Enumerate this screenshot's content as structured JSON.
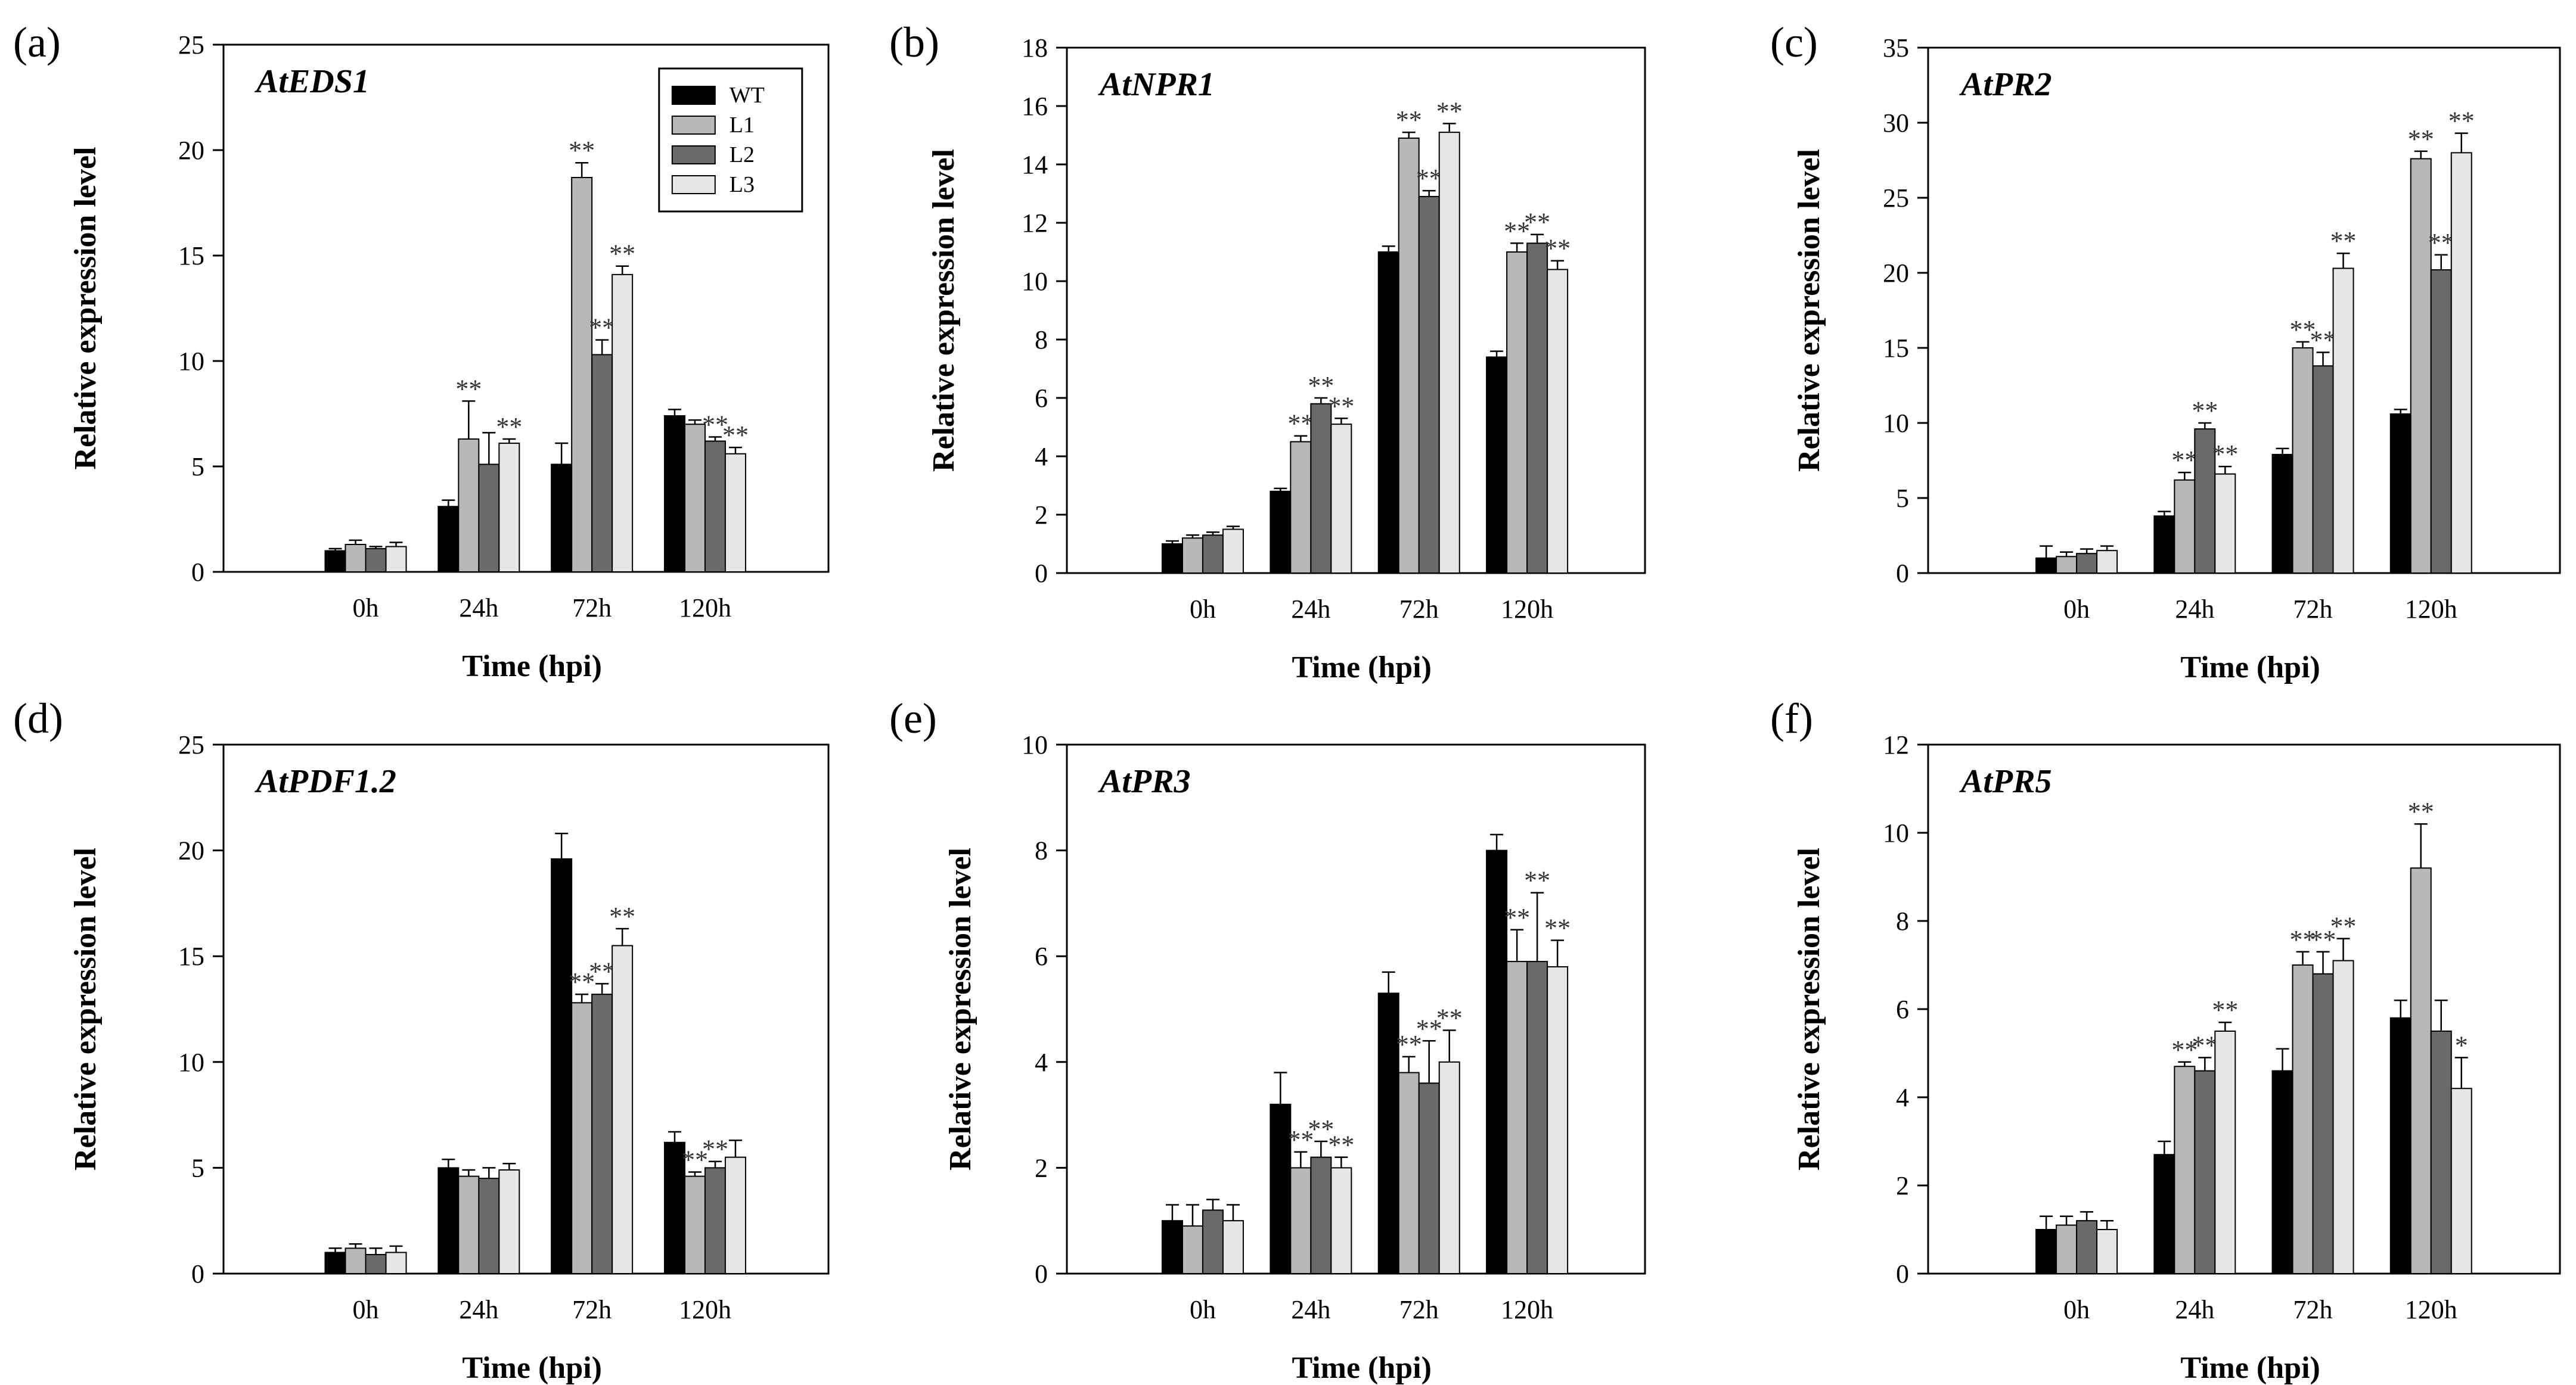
{
  "colors": {
    "WT": "#000000",
    "L1": "#b8b8b8",
    "L2": "#6a6a6a",
    "L3": "#e6e6e6",
    "axis": "#000000"
  },
  "legend": {
    "entries": [
      "WT",
      "L1",
      "L2",
      "L3"
    ]
  },
  "chart_data": [
    {
      "panel": "(a)",
      "type": "bar",
      "title": "AtEDS1",
      "xlabel": "Time (hpi)",
      "ylabel": "Relative expression level",
      "categories": [
        "0h",
        "24h",
        "72h",
        "120h"
      ],
      "ylim": [
        0,
        25
      ],
      "yticks": [
        0,
        5,
        10,
        15,
        20,
        25
      ],
      "series": [
        {
          "name": "WT",
          "values": [
            1.0,
            3.1,
            5.1,
            7.4
          ],
          "errors": [
            0.1,
            0.3,
            1.0,
            0.3
          ],
          "stars": [
            "",
            "",
            "",
            ""
          ]
        },
        {
          "name": "L1",
          "values": [
            1.3,
            6.3,
            18.7,
            7.0
          ],
          "errors": [
            0.2,
            1.8,
            0.7,
            0.2
          ],
          "stars": [
            "",
            "**",
            "**",
            ""
          ]
        },
        {
          "name": "L2",
          "values": [
            1.1,
            5.1,
            10.3,
            6.2
          ],
          "errors": [
            0.1,
            1.5,
            0.7,
            0.2
          ],
          "stars": [
            "",
            "",
            "**",
            "**"
          ]
        },
        {
          "name": "L3",
          "values": [
            1.2,
            6.1,
            14.1,
            5.6
          ],
          "errors": [
            0.2,
            0.2,
            0.4,
            0.3
          ],
          "stars": [
            "",
            "**",
            "**",
            "**"
          ]
        }
      ],
      "show_legend": true,
      "legend_position": "top-right"
    },
    {
      "panel": "(b)",
      "type": "bar",
      "title": "AtNPR1",
      "xlabel": "Time (hpi)",
      "ylabel": "Relative expression level",
      "categories": [
        "0h",
        "24h",
        "72h",
        "120h"
      ],
      "ylim": [
        0,
        18
      ],
      "yticks": [
        0,
        2,
        4,
        6,
        8,
        10,
        12,
        14,
        16,
        18
      ],
      "series": [
        {
          "name": "WT",
          "values": [
            1.0,
            2.8,
            11.0,
            7.4
          ],
          "errors": [
            0.1,
            0.1,
            0.2,
            0.2
          ],
          "stars": [
            "",
            "",
            "",
            ""
          ]
        },
        {
          "name": "L1",
          "values": [
            1.2,
            4.5,
            14.9,
            11.0
          ],
          "errors": [
            0.1,
            0.2,
            0.2,
            0.3
          ],
          "stars": [
            "",
            "**",
            "**",
            "**"
          ]
        },
        {
          "name": "L2",
          "values": [
            1.3,
            5.8,
            12.9,
            11.3
          ],
          "errors": [
            0.1,
            0.2,
            0.2,
            0.3
          ],
          "stars": [
            "",
            "**",
            "**",
            "**"
          ]
        },
        {
          "name": "L3",
          "values": [
            1.5,
            5.1,
            15.1,
            10.4
          ],
          "errors": [
            0.1,
            0.2,
            0.3,
            0.3
          ],
          "stars": [
            "",
            "**",
            "**",
            "**"
          ]
        }
      ],
      "show_legend": false
    },
    {
      "panel": "(c)",
      "type": "bar",
      "title": "AtPR2",
      "xlabel": "Time (hpi)",
      "ylabel": "Relative expression level",
      "categories": [
        "0h",
        "24h",
        "72h",
        "120h"
      ],
      "ylim": [
        0,
        35
      ],
      "yticks": [
        0,
        5,
        10,
        15,
        20,
        25,
        30,
        35
      ],
      "series": [
        {
          "name": "WT",
          "values": [
            1.0,
            3.8,
            7.9,
            10.6
          ],
          "errors": [
            0.8,
            0.3,
            0.4,
            0.3
          ],
          "stars": [
            "",
            "",
            "",
            ""
          ]
        },
        {
          "name": "L1",
          "values": [
            1.1,
            6.2,
            15.0,
            27.6
          ],
          "errors": [
            0.3,
            0.5,
            0.4,
            0.5
          ],
          "stars": [
            "",
            "**",
            "**",
            "**"
          ]
        },
        {
          "name": "L2",
          "values": [
            1.3,
            9.6,
            13.8,
            20.2
          ],
          "errors": [
            0.3,
            0.4,
            0.9,
            1.0
          ],
          "stars": [
            "",
            "**",
            "**",
            "**"
          ]
        },
        {
          "name": "L3",
          "values": [
            1.5,
            6.6,
            20.3,
            28.0
          ],
          "errors": [
            0.3,
            0.5,
            1.0,
            1.3
          ],
          "stars": [
            "",
            "**",
            "**",
            "**"
          ]
        }
      ],
      "show_legend": false
    },
    {
      "panel": "(d)",
      "type": "bar",
      "title": "AtPDF1.2",
      "xlabel": "Time (hpi)",
      "ylabel": "Relative expression level",
      "categories": [
        "0h",
        "24h",
        "72h",
        "120h"
      ],
      "ylim": [
        0,
        25
      ],
      "yticks": [
        0,
        5,
        10,
        15,
        20,
        25
      ],
      "series": [
        {
          "name": "WT",
          "values": [
            1.0,
            5.0,
            19.6,
            6.2
          ],
          "errors": [
            0.2,
            0.4,
            1.2,
            0.5
          ],
          "stars": [
            "",
            "",
            "",
            ""
          ]
        },
        {
          "name": "L1",
          "values": [
            1.2,
            4.6,
            12.8,
            4.6
          ],
          "errors": [
            0.2,
            0.3,
            0.4,
            0.2
          ],
          "stars": [
            "",
            "",
            "**",
            "**"
          ]
        },
        {
          "name": "L2",
          "values": [
            0.9,
            4.5,
            13.2,
            5.0
          ],
          "errors": [
            0.3,
            0.5,
            0.5,
            0.3
          ],
          "stars": [
            "",
            "",
            "**",
            "**"
          ]
        },
        {
          "name": "L3",
          "values": [
            1.0,
            4.9,
            15.5,
            5.5
          ],
          "errors": [
            0.3,
            0.3,
            0.8,
            0.8
          ],
          "stars": [
            "",
            "",
            "**",
            ""
          ]
        }
      ],
      "show_legend": false
    },
    {
      "panel": "(e)",
      "type": "bar",
      "title": "AtPR3",
      "xlabel": "Time (hpi)",
      "ylabel": "Relative expression level",
      "categories": [
        "0h",
        "24h",
        "72h",
        "120h"
      ],
      "ylim": [
        0,
        10
      ],
      "yticks": [
        0,
        2,
        4,
        6,
        8,
        10
      ],
      "series": [
        {
          "name": "WT",
          "values": [
            1.0,
            3.2,
            5.3,
            8.0
          ],
          "errors": [
            0.3,
            0.6,
            0.4,
            0.3
          ],
          "stars": [
            "",
            "",
            "",
            ""
          ]
        },
        {
          "name": "L1",
          "values": [
            0.9,
            2.0,
            3.8,
            5.9
          ],
          "errors": [
            0.4,
            0.3,
            0.3,
            0.6
          ],
          "stars": [
            "",
            "**",
            "**",
            "**"
          ]
        },
        {
          "name": "L2",
          "values": [
            1.2,
            2.2,
            3.6,
            5.9
          ],
          "errors": [
            0.2,
            0.3,
            0.8,
            1.3
          ],
          "stars": [
            "",
            "**",
            "**",
            "**"
          ]
        },
        {
          "name": "L3",
          "values": [
            1.0,
            2.0,
            4.0,
            5.8
          ],
          "errors": [
            0.3,
            0.2,
            0.6,
            0.5
          ],
          "stars": [
            "",
            "**",
            "**",
            "**"
          ]
        }
      ],
      "show_legend": false
    },
    {
      "panel": "(f)",
      "type": "bar",
      "title": "AtPR5",
      "xlabel": "Time (hpi)",
      "ylabel": "Relative expression level",
      "categories": [
        "0h",
        "24h",
        "72h",
        "120h"
      ],
      "ylim": [
        0,
        12
      ],
      "yticks": [
        0,
        2,
        4,
        6,
        8,
        10,
        12
      ],
      "series": [
        {
          "name": "WT",
          "values": [
            1.0,
            2.7,
            4.6,
            5.8
          ],
          "errors": [
            0.3,
            0.3,
            0.5,
            0.4
          ],
          "stars": [
            "",
            "",
            "",
            ""
          ]
        },
        {
          "name": "L1",
          "values": [
            1.1,
            4.7,
            7.0,
            9.2
          ],
          "errors": [
            0.2,
            0.1,
            0.3,
            1.0
          ],
          "stars": [
            "",
            "**",
            "**",
            "**"
          ]
        },
        {
          "name": "L2",
          "values": [
            1.2,
            4.6,
            6.8,
            5.5
          ],
          "errors": [
            0.2,
            0.3,
            0.5,
            0.7
          ],
          "stars": [
            "",
            "**",
            "**",
            ""
          ]
        },
        {
          "name": "L3",
          "values": [
            1.0,
            5.5,
            7.1,
            4.2
          ],
          "errors": [
            0.2,
            0.2,
            0.5,
            0.7
          ],
          "stars": [
            "",
            "**",
            "**",
            "*"
          ]
        }
      ],
      "show_legend": false
    }
  ]
}
